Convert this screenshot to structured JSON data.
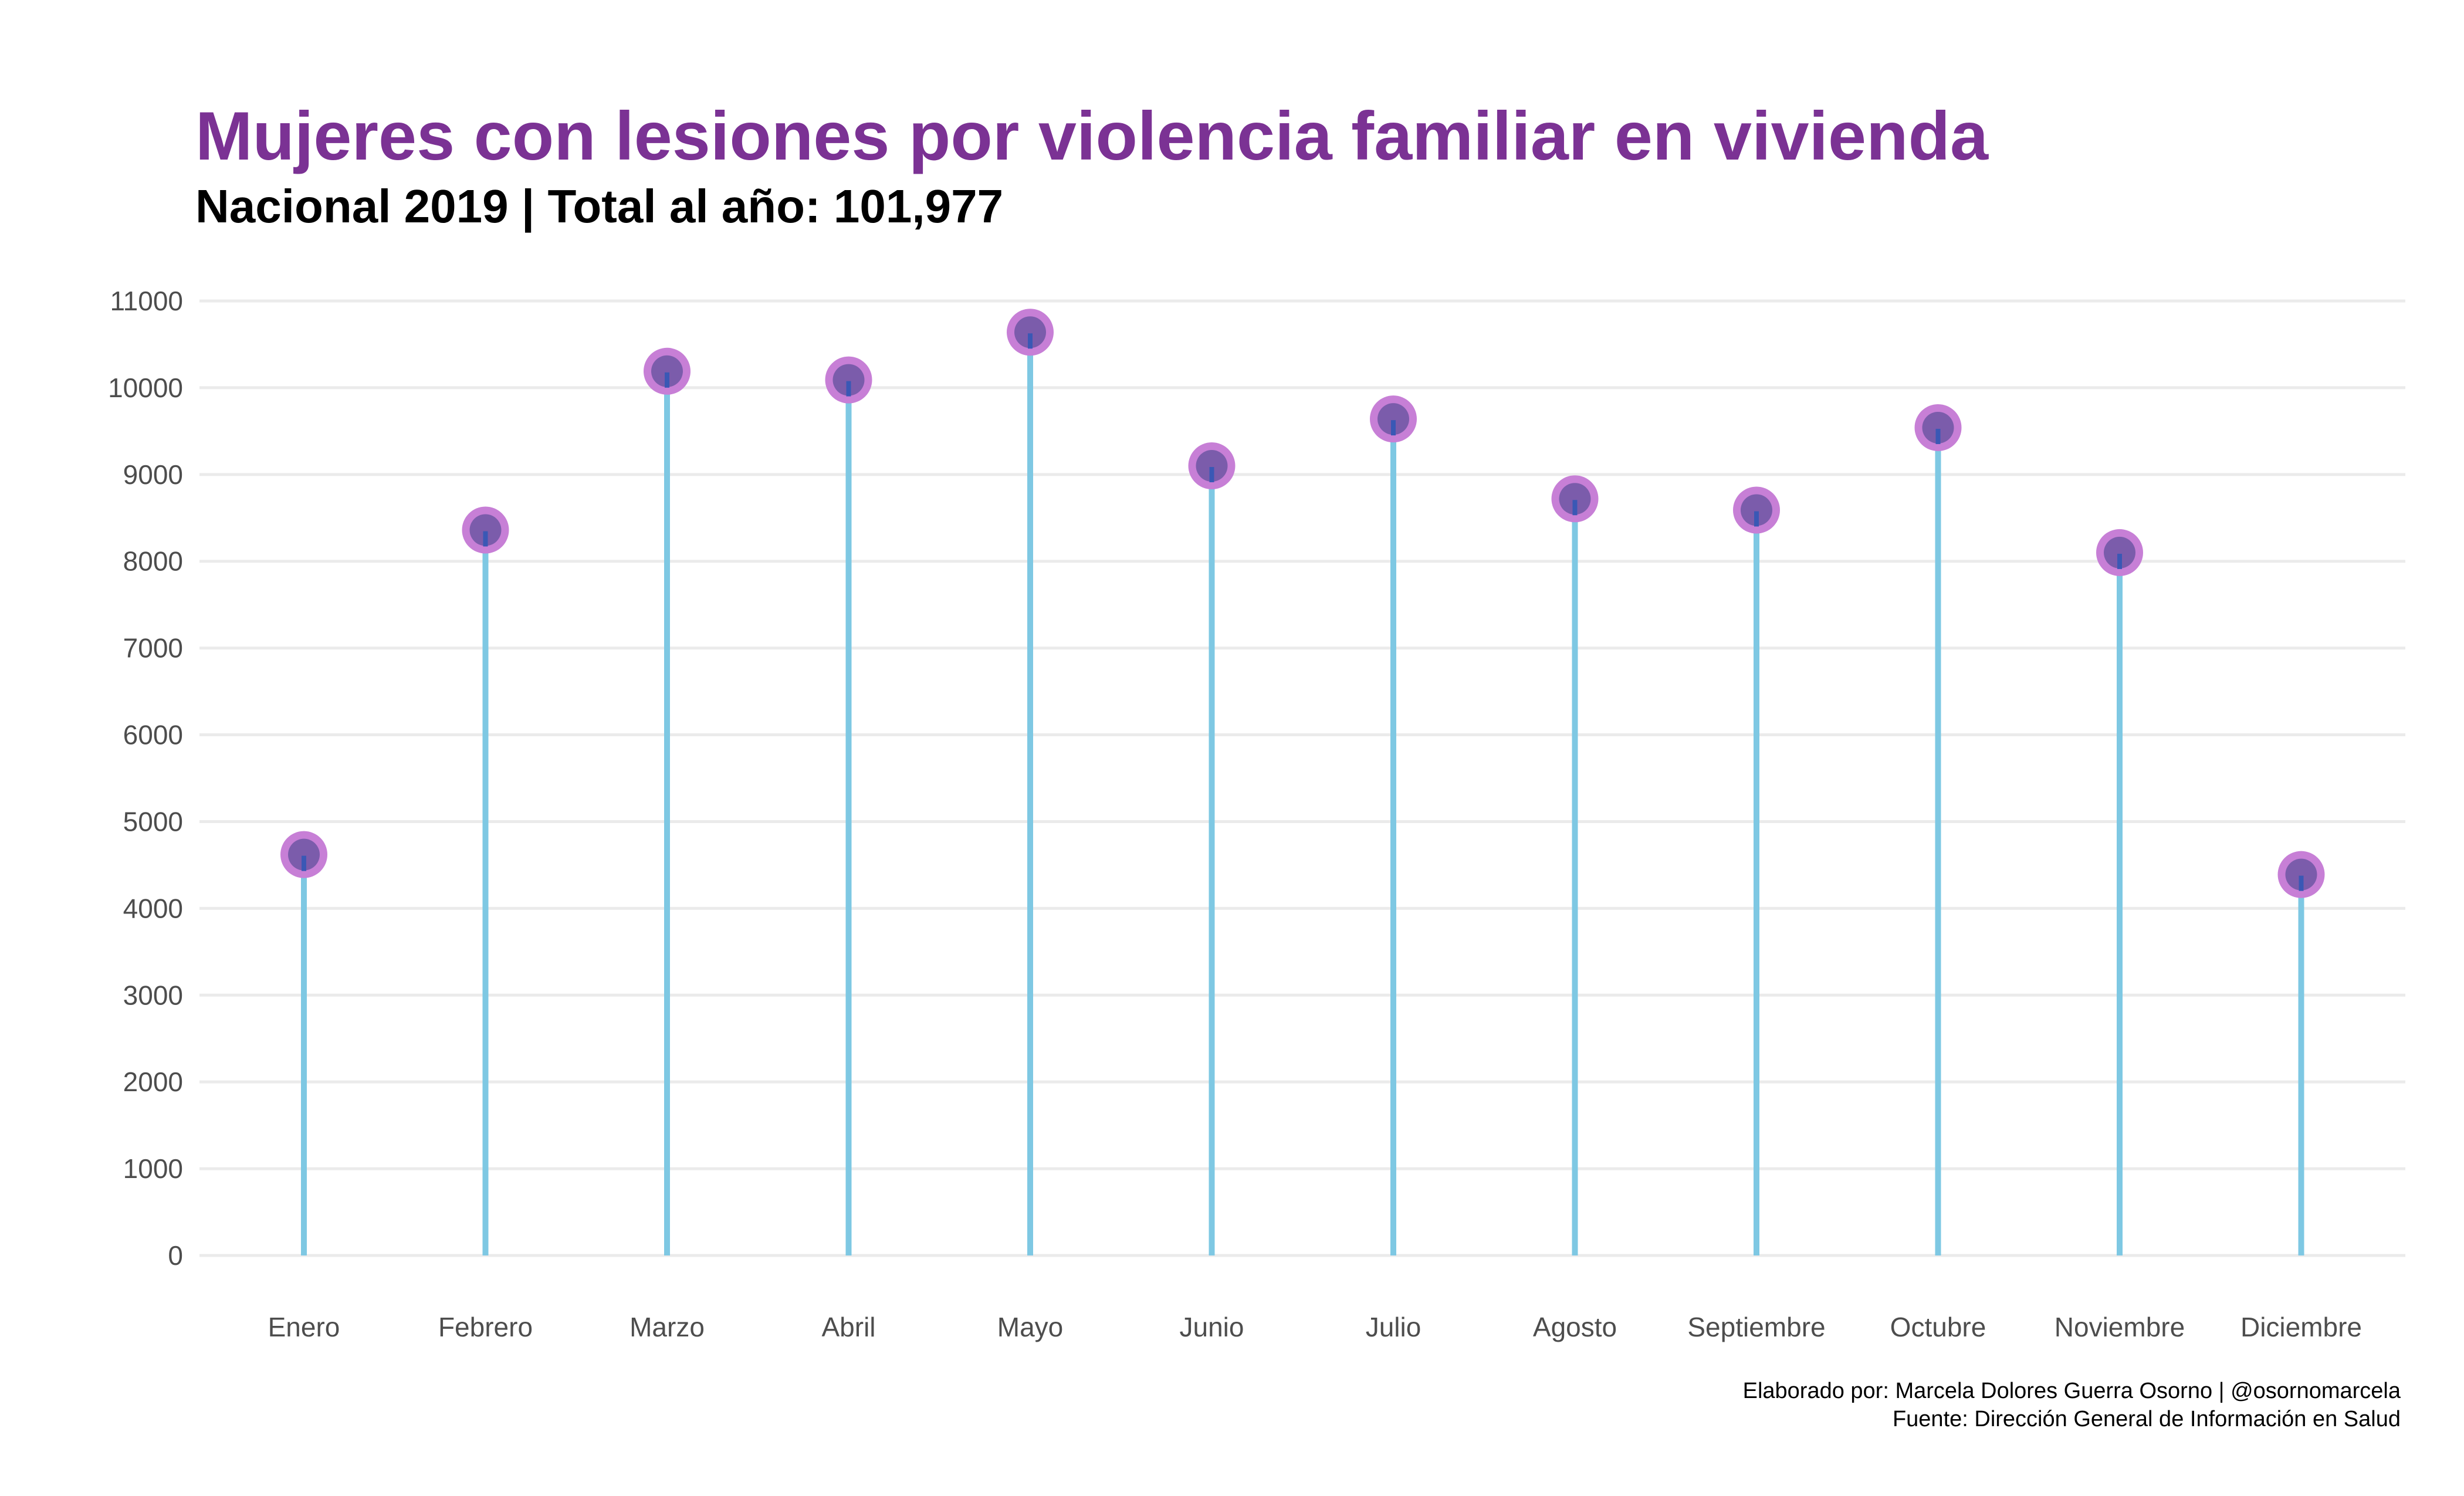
{
  "chart_data": {
    "type": "lollipop",
    "title": "Mujeres con lesiones por violencia familiar en vivienda",
    "subtitle": "Nacional 2019 | Total al año: 101,977",
    "categories": [
      "Enero",
      "Febrero",
      "Marzo",
      "Abril",
      "Mayo",
      "Junio",
      "Julio",
      "Agosto",
      "Septiembre",
      "Octubre",
      "Noviembre",
      "Diciembre"
    ],
    "values": [
      4620,
      8360,
      10190,
      10090,
      10640,
      9100,
      9640,
      8720,
      8590,
      9540,
      8100,
      4390
    ],
    "ylim": [
      0,
      11000
    ],
    "yticks": [
      0,
      1000,
      2000,
      3000,
      4000,
      5000,
      6000,
      7000,
      8000,
      9000,
      10000,
      11000
    ],
    "xlabel": "",
    "ylabel": "",
    "grid": true,
    "legend": "none",
    "caption_lines": [
      "Elaborado por: Marcela Dolores Guerra Osorno | @osornomarcela",
      "Fuente: Dirección General de Información en Salud"
    ]
  },
  "colors": {
    "title": "#7b3294",
    "stem": "#7ec8e3",
    "point_outer": "#c77fd6",
    "point_inner": "#7b5cab",
    "point_center_line": "#3a58b5",
    "grid": "#ebebeb",
    "tick_text": "#4d4d4d"
  }
}
